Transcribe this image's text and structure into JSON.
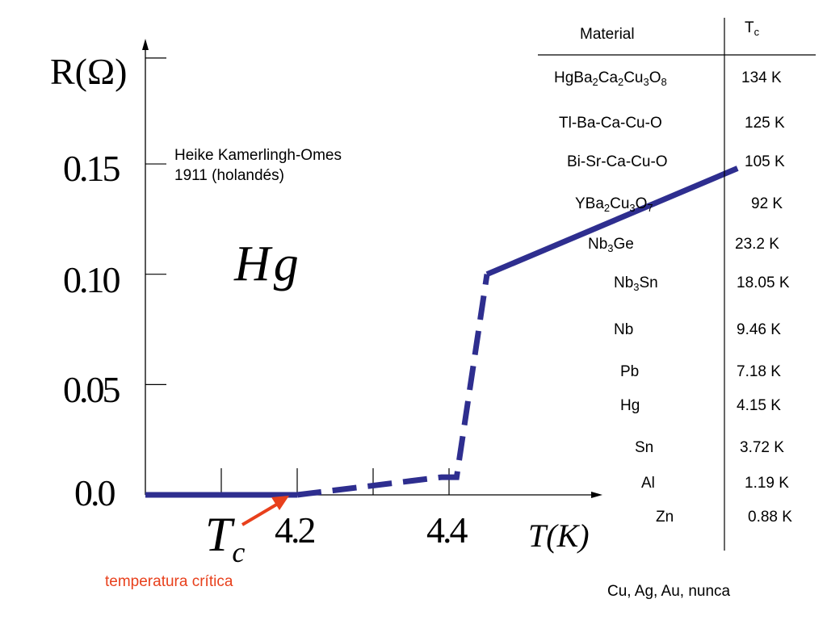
{
  "chart_data": {
    "type": "line",
    "title": "",
    "xlabel": "T(K)",
    "ylabel": "R(Ω)",
    "xlim": [
      4.0,
      4.5
    ],
    "ylim": [
      0.0,
      0.195
    ],
    "x_ticks": [
      4.2,
      4.4
    ],
    "x_tick_labels": [
      "4.2",
      "4.4"
    ],
    "y_ticks": [
      0.0,
      0.05,
      0.1,
      0.15
    ],
    "y_tick_labels": [
      "0.0",
      "0.05",
      "0.10",
      "0.15"
    ],
    "grid": false,
    "series": [
      {
        "segments": [
          {
            "style": "solid",
            "points": [
              [
                4.0,
                0.0
              ],
              [
                4.2,
                0.0
              ]
            ]
          },
          {
            "style": "dashed",
            "points": [
              [
                4.2,
                0.0
              ],
              [
                4.39,
                0.008
              ],
              [
                4.41,
                0.008
              ],
              [
                4.45,
                0.1
              ]
            ]
          },
          {
            "style": "solid",
            "points": [
              [
                4.45,
                0.1
              ],
              [
                4.78,
                0.148
              ]
            ]
          }
        ]
      }
    ],
    "annotations": {
      "curve_label": "Hg",
      "note_line1": "Heike Kamerlingh-Omes",
      "note_line2": "1911 (holandés)",
      "tc_symbol": "T",
      "tc_subscript": "c",
      "tc_caption": "temperatura crítica"
    }
  },
  "table": {
    "header_material": "Material",
    "header_tc": "T",
    "header_tc_sub": "c",
    "rows": [
      {
        "material": [
          {
            "t": "HgBa"
          },
          {
            "s": "2"
          },
          {
            "t": "Ca"
          },
          {
            "s": "2"
          },
          {
            "t": "Cu"
          },
          {
            "s": "3"
          },
          {
            "t": "O"
          },
          {
            "s": "8"
          }
        ],
        "tc": "134 K"
      },
      {
        "material": [
          {
            "t": "Tl-Ba-Ca-Cu-O"
          }
        ],
        "tc": "125 K"
      },
      {
        "material": [
          {
            "t": "Bi-Sr-Ca-Cu-O"
          }
        ],
        "tc": "105 K"
      },
      {
        "material": [
          {
            "t": "YBa"
          },
          {
            "s": "2"
          },
          {
            "t": "Cu"
          },
          {
            "s": "3"
          },
          {
            "t": "O"
          },
          {
            "s": "7"
          }
        ],
        "tc": "92 K"
      },
      {
        "material": [
          {
            "t": "Nb"
          },
          {
            "s": "3"
          },
          {
            "t": "Ge"
          }
        ],
        "tc": "23.2 K"
      },
      {
        "material": [
          {
            "t": "Nb"
          },
          {
            "s": "3"
          },
          {
            "t": "Sn"
          }
        ],
        "tc": "18.05 K"
      },
      {
        "material": [
          {
            "t": "Nb"
          }
        ],
        "tc": "9.46 K"
      },
      {
        "material": [
          {
            "t": "Pb"
          }
        ],
        "tc": "7.18 K"
      },
      {
        "material": [
          {
            "t": "Hg"
          }
        ],
        "tc": "4.15 K"
      },
      {
        "material": [
          {
            "t": "Sn"
          }
        ],
        "tc": "3.72 K"
      },
      {
        "material": [
          {
            "t": "Al"
          }
        ],
        "tc": "1.19 K"
      },
      {
        "material": [
          {
            "t": "Zn"
          }
        ],
        "tc": "0.88 K"
      }
    ],
    "footer": "Cu, Ag, Au, nunca"
  },
  "colors": {
    "curve": "#2e2e8f",
    "arrow": "#e8401c",
    "accent_text": "#e8401c",
    "axis": "#000000"
  }
}
